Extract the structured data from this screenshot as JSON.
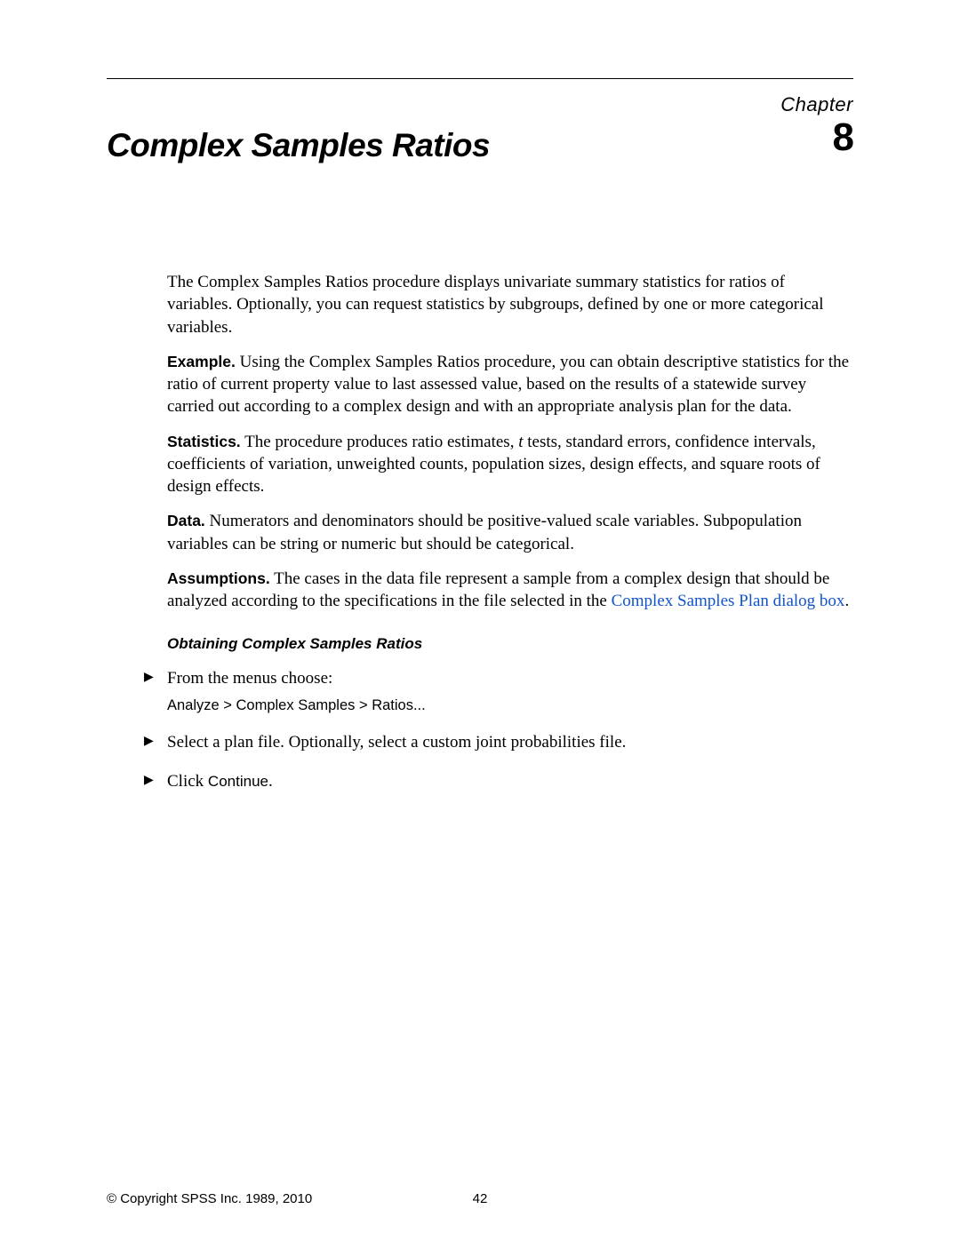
{
  "chapter": {
    "label": "Chapter",
    "number": "8"
  },
  "title": "Complex Samples Ratios",
  "intro": "The Complex Samples Ratios procedure displays univariate summary statistics for ratios of variables. Optionally, you can request statistics by subgroups, defined by one or more categorical variables.",
  "example": {
    "label": "Example.",
    "text": " Using the Complex Samples Ratios procedure, you can obtain descriptive statistics for the ratio of current property value to last assessed value, based on the results of a statewide survey carried out according to a complex design and with an appropriate analysis plan for the data."
  },
  "statistics": {
    "label": "Statistics.",
    "text_before_italic": " The procedure produces ratio estimates, ",
    "italic_term": "t",
    "text_after_italic": " tests, standard errors, confidence intervals, coefficients of variation, unweighted counts, population sizes, design effects, and square roots of design effects."
  },
  "data": {
    "label": "Data.",
    "text": " Numerators and denominators should be positive-valued scale variables. Subpopulation variables can be string or numeric but should be categorical."
  },
  "assumptions": {
    "label": "Assumptions.",
    "text_before_link": " The cases in the data file represent a sample from a complex design that should be analyzed according to the specifications in the file selected in the ",
    "link_text": "Complex Samples Plan dialog box",
    "text_after_link": "."
  },
  "subheading": "Obtaining Complex Samples Ratios",
  "steps": {
    "s1": {
      "text": "From the menus choose:",
      "menupath": "Analyze > Complex Samples > Ratios..."
    },
    "s2": {
      "text": "Select a plan file. Optionally, select a custom joint probabilities file."
    },
    "s3": {
      "text_before": "Click ",
      "ui": "Continue",
      "text_after": "."
    }
  },
  "footer": {
    "copyright": "© Copyright SPSS Inc. 1989, 2010",
    "page": "42"
  },
  "colors": {
    "text": "#000000",
    "link": "#1155cc",
    "background": "#ffffff"
  },
  "typography": {
    "body_font": "Times New Roman",
    "heading_font": "Arial",
    "body_size_pt": 14,
    "title_size_pt": 28,
    "chapter_number_size_pt": 33
  }
}
